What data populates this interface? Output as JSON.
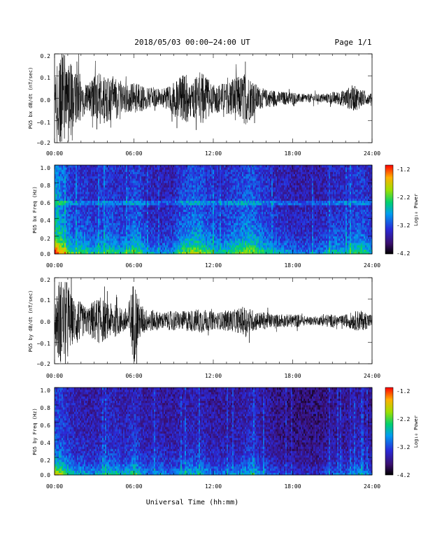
{
  "header": {
    "date_label": "2018/05/03  00:00−24:00 UT",
    "page_label": "Page 1/1"
  },
  "xlabel": "Universal Time (hh:mm)",
  "x_tick_labels": [
    "00:00",
    "06:00",
    "12:00",
    "18:00",
    "24:00"
  ],
  "colorbar": {
    "label": "Log₁₀ Power",
    "tick_labels": [
      "-1.2",
      "-2.2",
      "-3.2",
      "-4.2"
    ],
    "range": [
      -4.2,
      -1.2
    ]
  },
  "chart_data": [
    {
      "type": "line",
      "ylabel": "PG5 bx dB/dt (nT/sec)",
      "y_tick_labels": [
        "0.2",
        "0.1",
        "0.0",
        "−0.1",
        "−0.2"
      ],
      "x_range_hours": [
        0,
        24
      ],
      "ylim": [
        -0.2,
        0.2
      ],
      "envelope_hours": [
        0,
        0.25,
        0.5,
        0.75,
        1,
        1.25,
        1.5,
        1.75,
        2,
        2.5,
        3,
        3.5,
        4,
        4.5,
        5,
        5.5,
        6,
        6.5,
        7,
        7.5,
        8,
        8.5,
        9,
        9.5,
        10,
        10.5,
        11,
        11.5,
        12,
        12.5,
        13,
        13.5,
        14,
        14.5,
        15,
        15.5,
        16,
        16.5,
        17,
        17.5,
        18,
        18.5,
        19,
        19.5,
        20,
        20.5,
        21,
        21.5,
        22,
        22.5,
        23,
        23.5,
        24
      ],
      "envelope_amplitude": [
        0.05,
        0.2,
        0.2,
        0.2,
        0.12,
        0.2,
        0.1,
        0.14,
        0.1,
        0.06,
        0.1,
        0.12,
        0.11,
        0.1,
        0.08,
        0.06,
        0.07,
        0.06,
        0.05,
        0.05,
        0.04,
        0.05,
        0.08,
        0.1,
        0.11,
        0.09,
        0.12,
        0.1,
        0.06,
        0.07,
        0.07,
        0.1,
        0.1,
        0.12,
        0.08,
        0.05,
        0.04,
        0.04,
        0.03,
        0.03,
        0.03,
        0.02,
        0.02,
        0.02,
        0.02,
        0.02,
        0.03,
        0.03,
        0.04,
        0.06,
        0.05,
        0.03,
        0.02
      ]
    },
    {
      "type": "heatmap",
      "ylabel": "PG5 bx Freq (Hz)",
      "y_tick_labels": [
        "1.0",
        "0.8",
        "0.6",
        "0.4",
        "0.2",
        "0.0"
      ],
      "x_range_hours": [
        0,
        24
      ],
      "ylim": [
        0,
        1.0
      ],
      "color_range": [
        -4.2,
        -1.2
      ],
      "activity_hours": [
        0,
        0.5,
        1,
        1.5,
        2,
        2.5,
        3,
        3.5,
        4,
        4.5,
        5,
        5.5,
        6,
        6.5,
        7,
        7.5,
        8,
        8.5,
        9,
        9.5,
        10,
        10.5,
        11,
        11.5,
        12,
        12.5,
        13,
        13.5,
        14,
        14.5,
        15,
        15.5,
        16,
        16.5,
        17,
        17.5,
        18,
        18.5,
        19,
        19.5,
        20,
        20.5,
        21,
        21.5,
        22,
        22.5,
        23,
        23.5,
        24
      ],
      "activity_level": [
        0.85,
        0.75,
        0.55,
        0.45,
        0.5,
        0.45,
        0.4,
        0.45,
        0.5,
        0.45,
        0.4,
        0.45,
        0.55,
        0.5,
        0.35,
        0.35,
        0.3,
        0.35,
        0.35,
        0.5,
        0.55,
        0.6,
        0.6,
        0.5,
        0.45,
        0.4,
        0.45,
        0.5,
        0.55,
        0.6,
        0.6,
        0.5,
        0.45,
        0.4,
        0.35,
        0.35,
        0.3,
        0.3,
        0.3,
        0.3,
        0.3,
        0.35,
        0.4,
        0.4,
        0.4,
        0.45,
        0.5,
        0.45,
        0.35
      ]
    },
    {
      "type": "line",
      "ylabel": "PG5 by dB/dt (nT/sec)",
      "y_tick_labels": [
        "0.2",
        "0.1",
        "0.0",
        "−0.1",
        "−0.2"
      ],
      "x_range_hours": [
        0,
        24
      ],
      "ylim": [
        -0.2,
        0.2
      ],
      "envelope_hours": [
        0,
        0.25,
        0.5,
        0.75,
        1,
        1.25,
        1.5,
        1.75,
        2,
        2.5,
        3,
        3.5,
        4,
        4.5,
        5,
        5.5,
        6,
        6.5,
        7,
        7.5,
        8,
        8.5,
        9,
        9.5,
        10,
        10.5,
        11,
        11.5,
        12,
        12.5,
        13,
        13.5,
        14,
        14.5,
        15,
        15.5,
        16,
        16.5,
        17,
        17.5,
        18,
        18.5,
        19,
        19.5,
        20,
        20.5,
        21,
        21.5,
        22,
        22.5,
        23,
        23.5,
        24
      ],
      "envelope_amplitude": [
        0.06,
        0.2,
        0.2,
        0.18,
        0.2,
        0.12,
        0.1,
        0.12,
        0.08,
        0.06,
        0.1,
        0.11,
        0.08,
        0.08,
        0.06,
        0.06,
        0.2,
        0.08,
        0.05,
        0.05,
        0.04,
        0.04,
        0.05,
        0.04,
        0.05,
        0.05,
        0.06,
        0.05,
        0.04,
        0.04,
        0.05,
        0.05,
        0.06,
        0.07,
        0.05,
        0.04,
        0.04,
        0.03,
        0.03,
        0.03,
        0.03,
        0.03,
        0.02,
        0.02,
        0.02,
        0.03,
        0.03,
        0.02,
        0.03,
        0.04,
        0.05,
        0.04,
        0.03
      ]
    },
    {
      "type": "heatmap",
      "ylabel": "PG5 by Freq (Hz)",
      "y_tick_labels": [
        "1.0",
        "0.8",
        "0.6",
        "0.4",
        "0.2",
        "0.0"
      ],
      "x_range_hours": [
        0,
        24
      ],
      "ylim": [
        0,
        1.0
      ],
      "color_range": [
        -4.2,
        -1.2
      ],
      "activity_hours": [
        0,
        0.5,
        1,
        1.5,
        2,
        2.5,
        3,
        3.5,
        4,
        4.5,
        5,
        5.5,
        6,
        6.5,
        7,
        7.5,
        8,
        8.5,
        9,
        9.5,
        10,
        10.5,
        11,
        11.5,
        12,
        12.5,
        13,
        13.5,
        14,
        14.5,
        15,
        15.5,
        16,
        16.5,
        17,
        17.5,
        18,
        18.5,
        19,
        19.5,
        20,
        20.5,
        21,
        21.5,
        22,
        22.5,
        23,
        23.5,
        24
      ],
      "activity_level": [
        0.75,
        0.7,
        0.55,
        0.45,
        0.45,
        0.4,
        0.4,
        0.45,
        0.5,
        0.5,
        0.45,
        0.45,
        0.6,
        0.45,
        0.35,
        0.4,
        0.4,
        0.35,
        0.35,
        0.4,
        0.45,
        0.45,
        0.45,
        0.4,
        0.35,
        0.35,
        0.35,
        0.35,
        0.4,
        0.45,
        0.5,
        0.4,
        0.35,
        0.3,
        0.25,
        0.25,
        0.2,
        0.2,
        0.2,
        0.2,
        0.2,
        0.25,
        0.3,
        0.3,
        0.3,
        0.35,
        0.4,
        0.35,
        0.3
      ]
    }
  ]
}
